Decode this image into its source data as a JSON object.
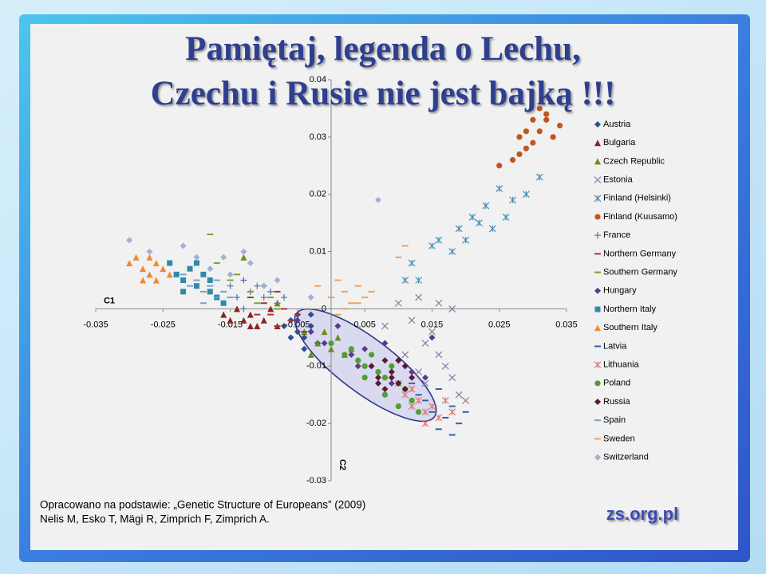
{
  "title_lines": [
    "Pamiętaj, legenda o Lechu,",
    "Czechu i Rusie nie jest bajką !!!"
  ],
  "source_lines": [
    "Opracowano na podstawie: „Genetic Structure  of Europeans” (2009)",
    "Nelis M, Esko T, Mägi R, Zimprich F, Zimprich A."
  ],
  "watermark": "zs.org.pl",
  "chart_data": {
    "type": "scatter",
    "x_label": "C1",
    "y_label": "C2",
    "xlim": [
      -0.035,
      0.035
    ],
    "ylim": [
      -0.03,
      0.04
    ],
    "xticks": [
      -0.035,
      -0.025,
      -0.015,
      -0.005,
      0.005,
      0.015,
      0.025,
      0.035
    ],
    "yticks": [
      0.04,
      0.03,
      0.02,
      0.01,
      0,
      -0.01,
      -0.02,
      -0.03
    ],
    "grid": false,
    "legend": "right",
    "series": [
      {
        "name": "Austria",
        "color": "#2f4f8f",
        "marker": "diamond",
        "x": [
          -0.006,
          -0.005,
          -0.004,
          -0.003,
          -0.002,
          -0.005,
          -0.007,
          -0.004,
          -0.003,
          -0.006
        ],
        "values": [
          -0.002,
          -0.004,
          -0.005,
          -0.003,
          -0.006,
          -0.001,
          -0.003,
          -0.007,
          -0.001,
          -0.005
        ]
      },
      {
        "name": "Bulgaria",
        "color": "#8b2323",
        "marker": "triangle",
        "x": [
          -0.016,
          -0.014,
          -0.013,
          -0.012,
          -0.011,
          -0.01,
          -0.015,
          -0.009,
          -0.012,
          -0.008
        ],
        "values": [
          -0.001,
          0.0,
          -0.002,
          -0.001,
          -0.003,
          -0.002,
          -0.002,
          0.0,
          -0.003,
          -0.003
        ]
      },
      {
        "name": "Czech Republic",
        "color": "#6b8e23",
        "marker": "triangle",
        "x": [
          -0.013,
          -0.008,
          -0.004,
          -0.002,
          0.0,
          0.001,
          -0.003,
          0.002,
          -0.001,
          0.003
        ],
        "values": [
          0.009,
          0.001,
          -0.004,
          -0.006,
          -0.007,
          -0.005,
          -0.008,
          -0.008,
          -0.004,
          -0.007
        ]
      },
      {
        "name": "Estonia",
        "color": "#8a7aa8",
        "marker": "x",
        "x": [
          0.008,
          0.01,
          0.012,
          0.013,
          0.014,
          0.015,
          0.016,
          0.017,
          0.018,
          0.019,
          0.02,
          0.011,
          0.013,
          0.016,
          0.018,
          0.014
        ],
        "values": [
          -0.003,
          0.001,
          -0.002,
          0.002,
          -0.006,
          -0.004,
          -0.008,
          -0.01,
          -0.012,
          -0.015,
          -0.016,
          -0.008,
          -0.011,
          0.001,
          0.0,
          -0.013
        ]
      },
      {
        "name": "Finland (Helsinki)",
        "color": "#4a90b8",
        "marker": "asterisk",
        "x": [
          0.011,
          0.012,
          0.013,
          0.015,
          0.016,
          0.018,
          0.019,
          0.02,
          0.021,
          0.022,
          0.023,
          0.024,
          0.025,
          0.026,
          0.027,
          0.029,
          0.031
        ],
        "values": [
          0.005,
          0.008,
          0.005,
          0.011,
          0.012,
          0.01,
          0.014,
          0.012,
          0.016,
          0.015,
          0.018,
          0.014,
          0.021,
          0.016,
          0.019,
          0.02,
          0.023
        ]
      },
      {
        "name": "Finland (Kuusamo)",
        "color": "#c0561c",
        "marker": "circle",
        "x": [
          0.025,
          0.027,
          0.028,
          0.029,
          0.03,
          0.031,
          0.032,
          0.033,
          0.034,
          0.03,
          0.028,
          0.032,
          0.029,
          0.031
        ],
        "values": [
          0.025,
          0.026,
          0.03,
          0.028,
          0.033,
          0.031,
          0.034,
          0.03,
          0.032,
          0.029,
          0.027,
          0.033,
          0.031,
          0.035
        ]
      },
      {
        "name": "France",
        "color": "#4f6fa8",
        "marker": "plus",
        "x": [
          -0.015,
          -0.014,
          -0.013,
          -0.012,
          -0.011,
          -0.01,
          -0.009,
          -0.008,
          -0.013,
          -0.007
        ],
        "values": [
          0.004,
          0.002,
          0.005,
          0.003,
          0.004,
          0.002,
          0.003,
          0.001,
          0.0,
          0.002
        ]
      },
      {
        "name": "Northern Germany",
        "color": "#b03030",
        "marker": "dash",
        "x": [
          -0.012,
          -0.01,
          -0.009,
          -0.008,
          -0.007,
          -0.006,
          -0.005,
          -0.004,
          -0.008,
          -0.011
        ],
        "values": [
          0.002,
          0.001,
          -0.001,
          0.003,
          0.0,
          -0.002,
          -0.001,
          -0.004,
          -0.003,
          -0.001
        ]
      },
      {
        "name": "Southern Germany",
        "color": "#7ba030",
        "marker": "dash",
        "x": [
          -0.018,
          -0.017,
          -0.015,
          -0.014,
          -0.012,
          -0.01,
          -0.009,
          -0.008,
          -0.011
        ],
        "values": [
          0.013,
          0.008,
          0.005,
          0.006,
          0.003,
          0.004,
          0.002,
          0.0,
          0.001
        ]
      },
      {
        "name": "Hungary",
        "color": "#5b3a8b",
        "marker": "diamond",
        "x": [
          -0.005,
          -0.003,
          -0.001,
          0.001,
          0.003,
          0.005,
          0.006,
          0.008,
          0.01,
          0.012,
          0.014,
          0.015,
          0.004,
          0.009
        ],
        "values": [
          -0.002,
          -0.004,
          -0.006,
          -0.003,
          -0.008,
          -0.007,
          -0.01,
          -0.006,
          -0.009,
          -0.011,
          -0.012,
          -0.005,
          -0.01,
          -0.013
        ]
      },
      {
        "name": "Northern Italy",
        "color": "#2e8ba8",
        "marker": "square",
        "x": [
          -0.024,
          -0.023,
          -0.022,
          -0.021,
          -0.02,
          -0.019,
          -0.018,
          -0.017,
          -0.022,
          -0.02,
          -0.018,
          -0.016
        ],
        "values": [
          0.008,
          0.006,
          0.005,
          0.007,
          0.004,
          0.006,
          0.003,
          0.002,
          0.003,
          0.008,
          0.005,
          0.001
        ]
      },
      {
        "name": "Southern Italy",
        "color": "#f08a30",
        "marker": "triangle",
        "x": [
          -0.03,
          -0.029,
          -0.028,
          -0.027,
          -0.026,
          -0.025,
          -0.028,
          -0.026,
          -0.027,
          -0.024
        ],
        "values": [
          0.008,
          0.009,
          0.007,
          0.006,
          0.008,
          0.007,
          0.005,
          0.005,
          0.009,
          0.006
        ]
      },
      {
        "name": "Latvia",
        "color": "#3060b0",
        "marker": "dash",
        "x": [
          0.012,
          0.014,
          0.015,
          0.016,
          0.017,
          0.018,
          0.019,
          0.02,
          0.016,
          0.018,
          0.013
        ],
        "values": [
          -0.013,
          -0.016,
          -0.018,
          -0.014,
          -0.019,
          -0.017,
          -0.02,
          -0.018,
          -0.021,
          -0.022,
          -0.015
        ]
      },
      {
        "name": "Lithuania",
        "color": "#e07a7a",
        "marker": "asterisk",
        "x": [
          0.01,
          0.011,
          0.012,
          0.013,
          0.014,
          0.015,
          0.016,
          0.017,
          0.018,
          0.014,
          0.012
        ],
        "values": [
          -0.013,
          -0.015,
          -0.014,
          -0.016,
          -0.018,
          -0.017,
          -0.019,
          -0.016,
          -0.018,
          -0.02,
          -0.017
        ]
      },
      {
        "name": "Poland",
        "color": "#50a030",
        "marker": "circle",
        "x": [
          0.0,
          0.002,
          0.003,
          0.004,
          0.005,
          0.006,
          0.007,
          0.008,
          0.009,
          0.01,
          0.011,
          0.012,
          0.005,
          0.008,
          0.01,
          0.013
        ],
        "values": [
          -0.006,
          -0.008,
          -0.007,
          -0.009,
          -0.01,
          -0.008,
          -0.011,
          -0.012,
          -0.01,
          -0.013,
          -0.014,
          -0.016,
          -0.012,
          -0.015,
          -0.017,
          -0.018
        ]
      },
      {
        "name": "Russia",
        "color": "#5a1838",
        "marker": "diamond",
        "x": [
          0.006,
          0.007,
          0.008,
          0.009,
          0.01,
          0.011,
          0.012,
          0.008,
          0.01,
          0.007,
          0.011,
          0.009
        ],
        "values": [
          -0.01,
          -0.012,
          -0.009,
          -0.011,
          -0.013,
          -0.01,
          -0.012,
          -0.014,
          -0.009,
          -0.013,
          -0.014,
          -0.012
        ]
      },
      {
        "name": "Spain",
        "color": "#7ba0c8",
        "marker": "dash",
        "x": [
          -0.022,
          -0.021,
          -0.02,
          -0.019,
          -0.018,
          -0.017,
          -0.016,
          -0.015,
          -0.019,
          -0.017
        ],
        "values": [
          0.006,
          0.004,
          0.005,
          0.003,
          0.004,
          0.002,
          0.003,
          0.002,
          0.001,
          0.005
        ]
      },
      {
        "name": "Sweden",
        "color": "#f0a060",
        "marker": "dash",
        "x": [
          -0.002,
          0.0,
          0.001,
          0.002,
          0.003,
          0.004,
          0.005,
          0.006,
          0.002,
          0.004,
          0.011,
          0.01,
          0.001
        ],
        "values": [
          0.004,
          0.002,
          0.005,
          0.003,
          0.001,
          0.004,
          0.002,
          0.003,
          0.0,
          0.001,
          0.011,
          0.009,
          -0.001
        ]
      },
      {
        "name": "Switzerland",
        "color": "#a0b0d8",
        "marker": "diamond",
        "x": [
          -0.03,
          -0.027,
          -0.022,
          -0.02,
          -0.018,
          -0.015,
          -0.012,
          -0.01,
          -0.008,
          -0.003,
          0.007,
          -0.016,
          -0.013
        ],
        "values": [
          0.012,
          0.01,
          0.011,
          0.009,
          0.007,
          0.006,
          0.008,
          0.004,
          0.005,
          0.002,
          0.019,
          0.009,
          0.01
        ]
      }
    ]
  }
}
